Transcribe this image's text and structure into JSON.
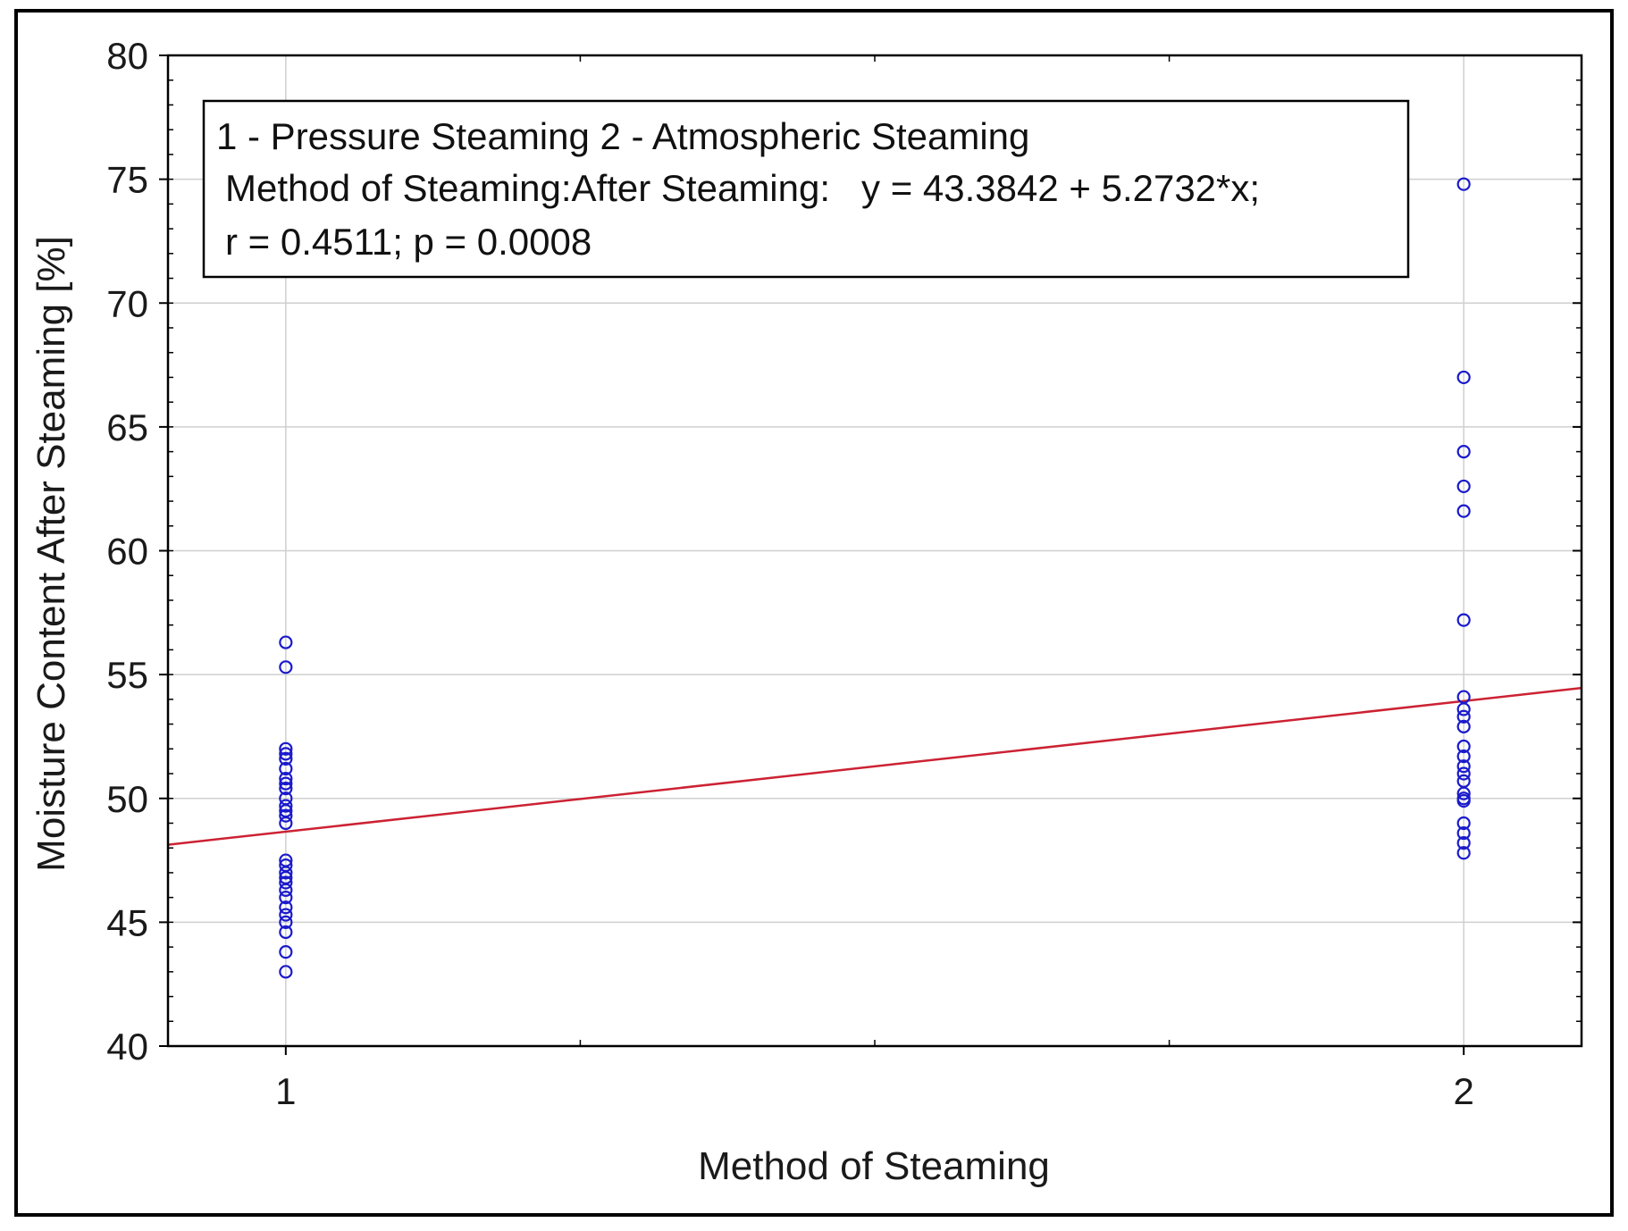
{
  "chart_data": {
    "type": "scatter",
    "xlabel": "Method of Steaming",
    "ylabel": "Moisture Content After Steaming [%]",
    "xlim": [
      0.9,
      2.1
    ],
    "ylim": [
      40,
      80
    ],
    "x_ticks": [
      1,
      2
    ],
    "y_ticks": [
      40,
      45,
      50,
      55,
      60,
      65,
      70,
      75,
      80
    ],
    "grid": true,
    "legend_position": "top-left",
    "annotation": [
      "1 - Pressure Steaming 2 - Atmospheric Steaming",
      "Method of Steaming:After Steaming:   y = 43.3842 + 5.2732*x;",
      "r = 0.4511; p = 0.0008"
    ],
    "regression": {
      "intercept": 43.3842,
      "slope": 5.2732
    },
    "series": [
      {
        "x": [
          1,
          1,
          1,
          1,
          1,
          1,
          1,
          1,
          1,
          1,
          1,
          1,
          1,
          1,
          1,
          1,
          1,
          1,
          1,
          1,
          1,
          1,
          1,
          1,
          1,
          1,
          1
        ],
        "values": [
          56.3,
          55.3,
          52.0,
          51.6,
          51.2,
          50.8,
          50.4,
          50.0,
          49.7,
          49.3,
          49.0,
          47.5,
          47.0,
          46.6,
          46.3,
          46.0,
          45.6,
          45.3,
          45.0,
          44.6,
          43.8,
          43.0,
          51.8,
          50.6,
          49.5,
          47.3,
          46.8
        ]
      },
      {
        "x": [
          2,
          2,
          2,
          2,
          2,
          2,
          2,
          2,
          2,
          2,
          2,
          2,
          2,
          2,
          2,
          2,
          2,
          2,
          2,
          2,
          2,
          2
        ],
        "values": [
          74.8,
          67.0,
          64.0,
          62.6,
          61.6,
          57.2,
          54.1,
          53.6,
          53.3,
          52.9,
          52.1,
          51.7,
          51.3,
          51.0,
          50.7,
          50.2,
          49.9,
          49.0,
          48.6,
          48.2,
          47.8,
          50.0
        ]
      }
    ],
    "colors": {
      "points": "#1a1acc",
      "regression_line": "#cc2233",
      "grid": "#cfcfcf",
      "axis": "#000000"
    }
  }
}
